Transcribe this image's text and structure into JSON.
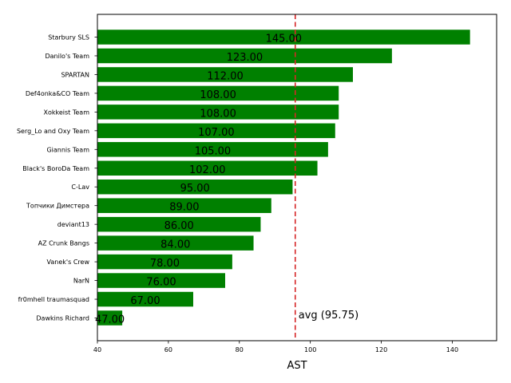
{
  "chart_data": {
    "type": "bar",
    "orientation": "horizontal",
    "categories": [
      "Starbury SLS",
      "Danilo's Team",
      "SPARTAN",
      "Def4onka&CO Team",
      "Xokkeist Team",
      "Serg_Lo and Oxy Team",
      "Giannis Team",
      "Black's BoroDa Team",
      "C-Lav",
      "Топчики Димстера",
      "deviant13",
      "AZ Crunk Bangs",
      "Vanek's Crew",
      "NarN",
      "fr0mhell traumasquad",
      "Dawkins Richard"
    ],
    "values": [
      145,
      123,
      112,
      108,
      108,
      107,
      105,
      102,
      95,
      89,
      86,
      84,
      78,
      76,
      67,
      47
    ],
    "value_labels": [
      "145.00",
      "123.00",
      "112.00",
      "108.00",
      "108.00",
      "107.00",
      "105.00",
      "102.00",
      "95.00",
      "89.00",
      "86.00",
      "84.00",
      "78.00",
      "76.00",
      "67.00",
      "47.00"
    ],
    "bar_color": "#008000",
    "xlabel": "AST",
    "ylabel": "",
    "title": "",
    "xlim": [
      40,
      152.5
    ],
    "xticks": [
      40,
      60,
      80,
      100,
      120,
      140
    ],
    "average": {
      "value": 95.75,
      "label": "avg (95.75)",
      "color": "#d62728",
      "style": "dashed"
    },
    "grid": false
  }
}
